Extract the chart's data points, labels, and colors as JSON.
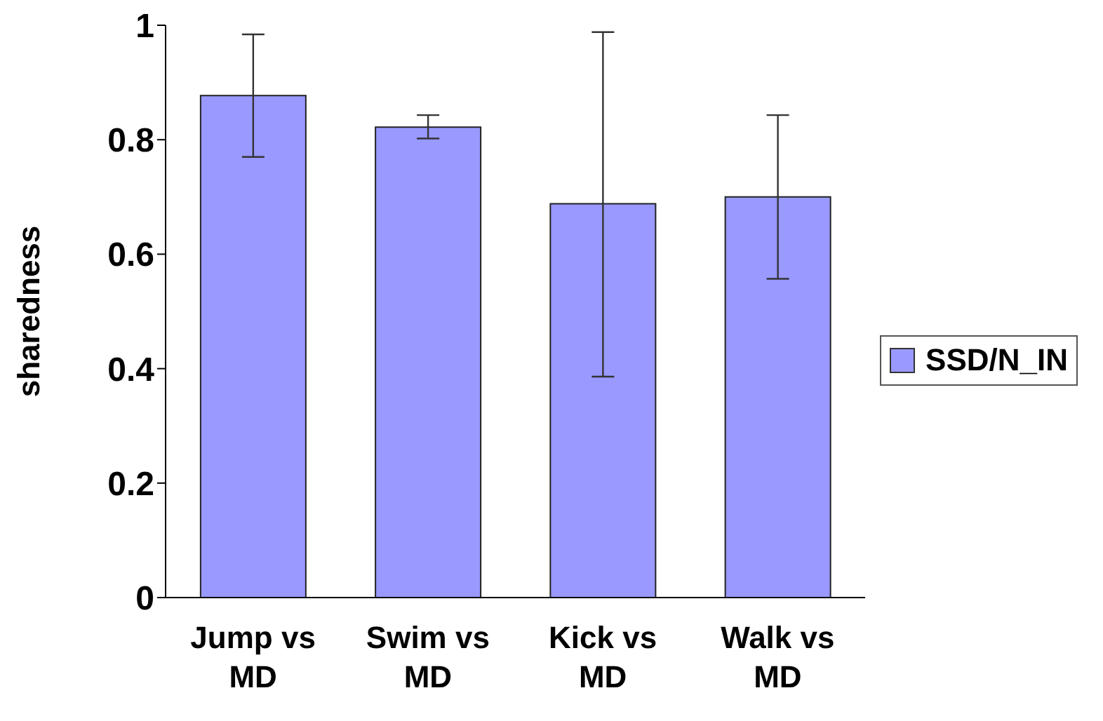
{
  "chart_data": {
    "type": "bar",
    "ylabel": "sharedness",
    "categories": [
      "Jump vs MD",
      "Swim vs MD",
      "Kick vs MD",
      "Walk vs MD"
    ],
    "series": [
      {
        "name": "SSD/N_IN",
        "color": "#9999ff",
        "values": [
          0.877,
          0.822,
          0.688,
          0.7
        ],
        "errors": [
          [
            0.77,
            0.984
          ],
          [
            0.802,
            0.843
          ],
          [
            0.386,
            0.988
          ],
          [
            0.557,
            0.843
          ]
        ]
      }
    ],
    "ylim": [
      0,
      1
    ],
    "yticks": [
      0,
      0.2,
      0.4,
      0.6,
      0.8,
      1
    ],
    "grid": false,
    "legend": "right"
  }
}
